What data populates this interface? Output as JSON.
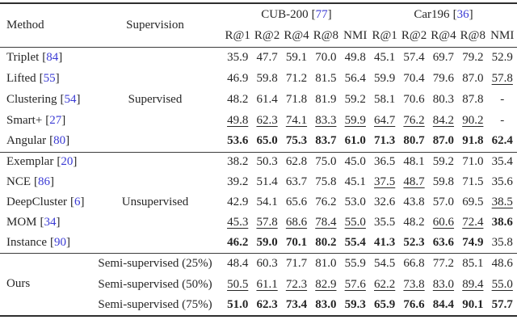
{
  "colors": {
    "text": "#262626",
    "citation": "#3a3ad4",
    "rule": "#2e2e2e",
    "background": "#ffffff"
  },
  "punct": {
    "open": "[",
    "close": "]"
  },
  "header": {
    "method": "Method",
    "supervision": "Supervision",
    "groups": [
      {
        "label": "CUB-200",
        "cite": "77"
      },
      {
        "label": "Car196",
        "cite": "36"
      }
    ],
    "metrics_row": [
      "R@1",
      "R@2",
      "R@4",
      "R@8",
      "NMI",
      "R@1",
      "R@2",
      "R@4",
      "R@8",
      "NMI"
    ]
  },
  "blocks": [
    {
      "shared_supervision": "Supervised",
      "rows": [
        {
          "method": "Triplet",
          "cite": "84",
          "values": [
            "35.9",
            "47.7",
            "59.1",
            "70.0",
            "49.8",
            "45.1",
            "57.4",
            "69.7",
            "79.2",
            "52.9"
          ],
          "styles": "pppppppppp"
        },
        {
          "method": "Lifted",
          "cite": "55",
          "values": [
            "46.9",
            "59.8",
            "71.2",
            "81.5",
            "56.4",
            "59.9",
            "70.4",
            "79.6",
            "87.0",
            "57.8"
          ],
          "styles": "pppppppppu"
        },
        {
          "method": "Clustering",
          "cite": "54",
          "values": [
            "48.2",
            "61.4",
            "71.8",
            "81.9",
            "59.2",
            "58.1",
            "70.6",
            "80.3",
            "87.8",
            "-"
          ],
          "styles": "pppppppppp"
        },
        {
          "method": "Smart+",
          "cite": "27",
          "values": [
            "49.8",
            "62.3",
            "74.1",
            "83.3",
            "59.9",
            "64.7",
            "76.2",
            "84.2",
            "90.2",
            "-"
          ],
          "styles": "uuuuuuuuup"
        },
        {
          "method": "Angular",
          "cite": "80",
          "values": [
            "53.6",
            "65.0",
            "75.3",
            "83.7",
            "61.0",
            "71.3",
            "80.7",
            "87.0",
            "91.8",
            "62.4"
          ],
          "styles": "bbbbbbbbbb"
        }
      ]
    },
    {
      "shared_supervision": "Unsupervised",
      "rows": [
        {
          "method": "Exemplar",
          "cite": "20",
          "values": [
            "38.2",
            "50.3",
            "62.8",
            "75.0",
            "45.0",
            "36.5",
            "48.1",
            "59.2",
            "71.0",
            "35.4"
          ],
          "styles": "pppppppppp"
        },
        {
          "method": "NCE",
          "cite": "86",
          "values": [
            "39.2",
            "51.4",
            "63.7",
            "75.8",
            "45.1",
            "37.5",
            "48.7",
            "59.8",
            "71.5",
            "35.6"
          ],
          "styles": "pppppuuppp"
        },
        {
          "method": "DeepCluster",
          "cite": "6",
          "values": [
            "42.9",
            "54.1",
            "65.6",
            "76.2",
            "53.0",
            "32.6",
            "43.8",
            "57.0",
            "69.5",
            "38.5"
          ],
          "styles": "pppppppppu"
        },
        {
          "method": "MOM",
          "cite": "34",
          "values": [
            "45.3",
            "57.8",
            "68.6",
            "78.4",
            "55.0",
            "35.5",
            "48.2",
            "60.6",
            "72.4",
            "38.6"
          ],
          "styles": "uuuuuppuub"
        },
        {
          "method": "Instance",
          "cite": "90",
          "values": [
            "46.2",
            "59.0",
            "70.1",
            "80.2",
            "55.4",
            "41.3",
            "52.3",
            "63.6",
            "74.9",
            "35.8"
          ],
          "styles": "bbbbbbbbbp"
        }
      ]
    },
    {
      "shared_method": "Ours",
      "rows": [
        {
          "supervision": "Semi-supervised (25%)",
          "values": [
            "48.4",
            "60.3",
            "71.7",
            "81.0",
            "55.9",
            "54.5",
            "66.8",
            "77.2",
            "85.1",
            "48.6"
          ],
          "styles": "pppppppppp"
        },
        {
          "supervision": "Semi-supervised (50%)",
          "values": [
            "50.5",
            "61.1",
            "72.3",
            "82.9",
            "57.6",
            "62.2",
            "73.8",
            "83.0",
            "89.4",
            "55.0"
          ],
          "styles": "uuuuuuuuuu"
        },
        {
          "supervision": "Semi-supervised (75%)",
          "values": [
            "51.0",
            "62.3",
            "73.4",
            "83.0",
            "59.3",
            "65.9",
            "76.6",
            "84.4",
            "90.1",
            "57.7"
          ],
          "styles": "bbbbbbbbbb"
        }
      ]
    }
  ]
}
